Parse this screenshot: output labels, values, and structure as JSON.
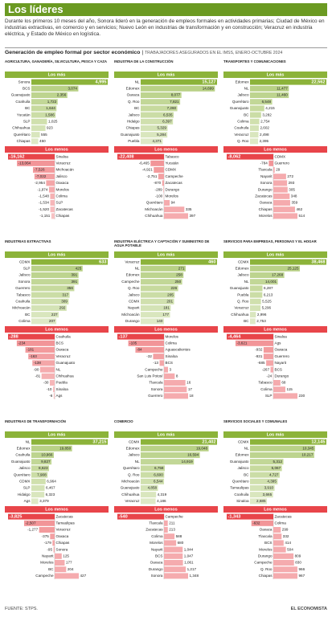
{
  "header": {
    "title": "Los líderes",
    "intro": "Durante los primeros 10 meses del año, Sonora lideró en la generación de empleos formales en actividades primarias; Ciudad de México en industrias extractivas, en comercio y en servicios; Nuevo León en industrias de transformación y en construcción; Veracruz en industria eléctrica, y Estado de México en logística.",
    "subtitle": "Generación de empleo formal por sector económico",
    "subtitle_note": "TRABAJADORES ASEGURADOS EN EL IMSS, ENERO-OCTUBRE 2024"
  },
  "footer": {
    "source": "FUENTE: STPS.",
    "brand": "EL ECONOMISTA"
  },
  "chart_data": [
    {
      "type": "bar",
      "title": "AGRICULTURA, GANADERÍA, SILVICULTURA, PESCA Y CAZA",
      "series": [
        {
          "name": "Los más",
          "color": "#8cb33a",
          "categories": [
            "Sonora",
            "BCS",
            "Guanajuato",
            "Coahuila",
            "BC",
            "Yucatán",
            "SLP",
            "Chihuahua",
            "Querétaro",
            "Chiapas"
          ],
          "values": [
            4995,
            3074,
            2356,
            1722,
            1644,
            1586,
            1025,
            923,
            555,
            450
          ],
          "value_labels": [
            "4,995",
            "3,074",
            "2,356",
            "1,722",
            "1,644",
            "1,586",
            "1,025",
            "923",
            "555",
            "450"
          ]
        },
        {
          "name": "Los menos",
          "color": "#e8454a",
          "categories": [
            "Sinaloa",
            "Veracruz",
            "Michoacán",
            "Jalisco",
            "Oaxaca",
            "Morelos",
            "Colima",
            "SLP",
            "Zacatecas",
            "Chiapas"
          ],
          "values": [
            -16162,
            -13064,
            -7526,
            -7022,
            -2954,
            -1974,
            -1548,
            -1534,
            -1520,
            -1151
          ],
          "value_labels": [
            "-16,162",
            "-13,064",
            "-7,526",
            "-7,022",
            "-2,954",
            "-1,974",
            "-1,548",
            "-1,534",
            "-1,520",
            "-1,151"
          ]
        }
      ]
    },
    {
      "type": "bar",
      "title": "INDUSTRIA DE LA CONSTRUCCIÓN",
      "series": [
        {
          "name": "Los más",
          "color": "#8cb33a",
          "categories": [
            "NL",
            "Edomex",
            "Oaxaca",
            "Q. Roo",
            "BC",
            "Jalisco",
            "Hidalgo",
            "Chiapas",
            "Guanajuato",
            "Puebla"
          ],
          "values": [
            15127,
            14699,
            8077,
            7821,
            7260,
            6535,
            6397,
            5329,
            5284,
            4371
          ],
          "value_labels": [
            "15,127",
            "14,699",
            "8,077",
            "7,821",
            "7,260",
            "6,535",
            "6,397",
            "5,329",
            "5,284",
            "4,371"
          ]
        },
        {
          "name": "Los menos",
          "color": "#e8454a",
          "categories": [
            "Tabasco",
            "Yucatán",
            "CDMX",
            "Campeche",
            "Zacatecas",
            "Durango",
            "Morelos",
            "Querétaro",
            "Michoacán",
            "Chihuahua"
          ],
          "values": [
            -22408,
            -6465,
            -4921,
            -2751,
            -870,
            -289,
            -100,
            94,
            335,
            397
          ],
          "value_labels": [
            "-22,408",
            "-6,465",
            "-4,921",
            "-2,751",
            "-870",
            "-289",
            "-100",
            "94",
            "335",
            "397"
          ]
        }
      ]
    },
    {
      "type": "bar",
      "title": "TRANSPORTES Y COMUNICACIONES",
      "series": [
        {
          "name": "Los más",
          "color": "#8cb33a",
          "categories": [
            "Edomex",
            "NL",
            "Jalisco",
            "Querétaro",
            "Guanajuato",
            "BC",
            "Colima",
            "Coahuila",
            "Veracruz",
            "Q. Roo"
          ],
          "values": [
            22562,
            11477,
            11460,
            6548,
            4215,
            3282,
            2754,
            2602,
            2498,
            2395
          ],
          "value_labels": [
            "22,562",
            "11,477",
            "11,460",
            "6,548",
            "4,215",
            "3,282",
            "2,754",
            "2,602",
            "2,498",
            "2,395"
          ]
        },
        {
          "name": "Los menos",
          "color": "#e8454a",
          "categories": [
            "CDMX",
            "Guerrero",
            "Tlaxcala",
            "Nayarit",
            "Sonora",
            "Durango",
            "Zacatecas",
            "Oaxaca",
            "Chiapas",
            "Morelos"
          ],
          "values": [
            -8062,
            -784,
            29,
            272,
            293,
            305,
            348,
            359,
            462,
            514
          ],
          "value_labels": [
            "-8,062",
            "-784",
            "29",
            "272",
            "293",
            "305",
            "348",
            "359",
            "462",
            "514"
          ]
        }
      ]
    },
    {
      "type": "bar",
      "title": "INDUSTRIAS EXTRACTIVAS",
      "series": [
        {
          "name": "Los más",
          "color": "#8cb33a",
          "categories": [
            "CDMX",
            "SLP",
            "Jalisco",
            "Sonora",
            "Guerrero",
            "Tabasco",
            "Coahuila",
            "Michoacán",
            "BC",
            "Colima"
          ],
          "values": [
            633,
            425,
            391,
            391,
            356,
            317,
            309,
            292,
            227,
            207
          ],
          "value_labels": [
            "633",
            "425",
            "391",
            "391",
            "356",
            "317",
            "309",
            "292",
            "227",
            "207"
          ]
        },
        {
          "name": "Los menos",
          "color": "#e8454a",
          "categories": [
            "Coahuila",
            "BCS",
            "Oaxaca",
            "Veracruz",
            "Guanajuato",
            "NL",
            "Chihuahua",
            "Puebla",
            "Sinaloa",
            "Ags"
          ],
          "values": [
            -288,
            -234,
            -181,
            -163,
            -138,
            -90,
            -81,
            -30,
            -10,
            -6
          ],
          "value_labels": [
            "-288",
            "-234",
            "-181",
            "-163",
            "-138",
            "-90",
            "-81",
            "-30",
            "-10",
            "-6"
          ]
        }
      ]
    },
    {
      "type": "bar",
      "title": "INDUSTRIA ELÉCTRICA Y CAPTACIÓN Y SUMINISTRO DE AGUA POTABLE",
      "series": [
        {
          "name": "Los más",
          "color": "#8cb33a",
          "categories": [
            "Veracruz",
            "NL",
            "Edomex",
            "Campeche",
            "Q. Roo",
            "Jalisco",
            "CDMX",
            "Nayarit",
            "Michoacán",
            "Durango"
          ],
          "values": [
            460,
            271,
            258,
            250,
            226,
            205,
            201,
            181,
            177,
            140
          ],
          "value_labels": [
            "460",
            "271",
            "258",
            "250",
            "226",
            "205",
            "201",
            "181",
            "177",
            "140"
          ]
        },
        {
          "name": "Los menos",
          "color": "#e8454a",
          "categories": [
            "Morelos",
            "Colima",
            "Aguascalientes",
            "Sinaloa",
            "BCS",
            "Campeche",
            "San Luis Potosí",
            "Tlaxcala",
            "Sonora",
            "Guerrero"
          ],
          "values": [
            -137,
            -105,
            -84,
            -32,
            -13,
            3,
            8,
            16,
            17,
            18
          ],
          "value_labels": [
            "-137",
            "-105",
            "-84",
            "-32",
            "-13",
            "3",
            "8",
            "16",
            "17",
            "18"
          ]
        }
      ]
    },
    {
      "type": "bar",
      "title": "SERVICIOS PARA EMPRESAS, PERSONAS Y EL HOGAR",
      "series": [
        {
          "name": "Los más",
          "color": "#8cb33a",
          "categories": [
            "CDMX",
            "Edomex",
            "Jalisco",
            "NL",
            "Guanajuato",
            "Puebla",
            "Q. Roo",
            "Veracruz",
            "Chihuahua",
            "BC"
          ],
          "values": [
            38468,
            25125,
            17268,
            14001,
            6287,
            6213,
            5525,
            5296,
            2996,
            2753
          ],
          "value_labels": [
            "38,468",
            "25,125",
            "17,268",
            "14,001",
            "6,287",
            "6,213",
            "5,525",
            "5,296",
            "2,996",
            "2,753"
          ]
        },
        {
          "name": "Los menos",
          "color": "#e8454a",
          "categories": [
            "Sinaloa",
            "Ags",
            "Oaxaca",
            "Guerrero",
            "Nayarit",
            "BCS",
            "Durango",
            "Tabasco",
            "Colima",
            "SLP"
          ],
          "values": [
            -4464,
            -3621,
            -932,
            -931,
            -685,
            -267,
            -24,
            68,
            115,
            230
          ],
          "value_labels": [
            "-4,464",
            "-3,621",
            "-932",
            "-931",
            "-685",
            "-267",
            "-24",
            "68",
            "115",
            "230"
          ]
        }
      ]
    },
    {
      "type": "bar",
      "title": "INDUSTRIAS DE TRANSFORMACIÓN",
      "series": [
        {
          "name": "Los más",
          "color": "#8cb33a",
          "categories": [
            "NL",
            "Edomex",
            "Coahuila",
            "Guanajuato",
            "Jalisco",
            "Querétaro",
            "CDMX",
            "SLP",
            "Hidalgo",
            "Ags"
          ],
          "values": [
            37215,
            19850,
            10966,
            9827,
            8623,
            7908,
            6964,
            6467,
            6323,
            3379
          ],
          "value_labels": [
            "37,215",
            "19,850",
            "10,966",
            "9,827",
            "8,623",
            "7,908",
            "6,964",
            "6,467",
            "6,323",
            "3,379"
          ]
        },
        {
          "name": "Los menos",
          "color": "#e8454a",
          "categories": [
            "Zacatecas",
            "Tamaulipas",
            "Veracruz",
            "Oaxaca",
            "Chiapas",
            "Sonora",
            "Nayarit",
            "Morelos",
            "BC",
            "Campeche"
          ],
          "values": [
            -3825,
            -2507,
            -1277,
            -375,
            -179,
            -95,
            125,
            177,
            204,
            427
          ],
          "value_labels": [
            "-3,825",
            "-2,507",
            "-1,277",
            "-375",
            "-179",
            "-95",
            "125",
            "177",
            "204",
            "427"
          ]
        }
      ]
    },
    {
      "type": "bar",
      "title": "COMERCIO",
      "series": [
        {
          "name": "Los más",
          "color": "#8cb33a",
          "categories": [
            "CDMX",
            "Edomex",
            "Jalisco",
            "NL",
            "Querétaro",
            "Q. Roo",
            "Michoacán",
            "Guanajuato",
            "Chihuahua",
            "Veracruz"
          ],
          "values": [
            21402,
            19048,
            16594,
            14919,
            6758,
            6600,
            6544,
            4858,
            4319,
            4186
          ],
          "value_labels": [
            "21,402",
            "19,048",
            "16,594",
            "14,919",
            "6,758",
            "6,600",
            "6,544",
            "4,858",
            "4,319",
            "4,186"
          ]
        },
        {
          "name": "Los menos",
          "color": "#e8454a",
          "categories": [
            "Campeche",
            "Tlaxcala",
            "Zacatecas",
            "Colima",
            "Morelos",
            "Nayarit",
            "BCS",
            "Oaxaca",
            "Durango",
            "Sonora"
          ],
          "values": [
            -540,
            211,
            213,
            588,
            680,
            1044,
            1047,
            1061,
            1217,
            1348
          ],
          "value_labels": [
            "-540",
            "211",
            "213",
            "588",
            "680",
            "1,044",
            "1,047",
            "1,061",
            "1,217",
            "1,348"
          ]
        }
      ]
    },
    {
      "type": "bar",
      "title": "SERVICIOS SOCIALES Y COMUNALES",
      "series": [
        {
          "name": "Los más",
          "color": "#8cb33a",
          "categories": [
            "CDMX",
            "NL",
            "Edomex",
            "Guanajuato",
            "Jalisco",
            "BC",
            "Querétaro",
            "Tamaulipas",
            "Coahuila",
            "Sinaloa"
          ],
          "values": [
            12145,
            10345,
            10217,
            5312,
            5067,
            4727,
            4395,
            3910,
            3665,
            2685
          ],
          "value_labels": [
            "12,145",
            "10,345",
            "10,217",
            "5,312",
            "5,067",
            "4,727",
            "4,395",
            "3,910",
            "3,665",
            "2,685"
          ]
        },
        {
          "name": "Los menos",
          "color": "#e8454a",
          "categories": [
            "Zacatecas",
            "Colima",
            "Oaxaca",
            "Tlaxcala",
            "BCS",
            "Morelos",
            "Durango",
            "Campeche",
            "Q. Roo",
            "Chiapas"
          ],
          "values": [
            -1343,
            -632,
            299,
            332,
            414,
            504,
            809,
            830,
            966,
            967
          ],
          "value_labels": [
            "-1,343",
            "-632",
            "299",
            "332",
            "414",
            "504",
            "809",
            "830",
            "966",
            "967"
          ]
        }
      ]
    }
  ]
}
